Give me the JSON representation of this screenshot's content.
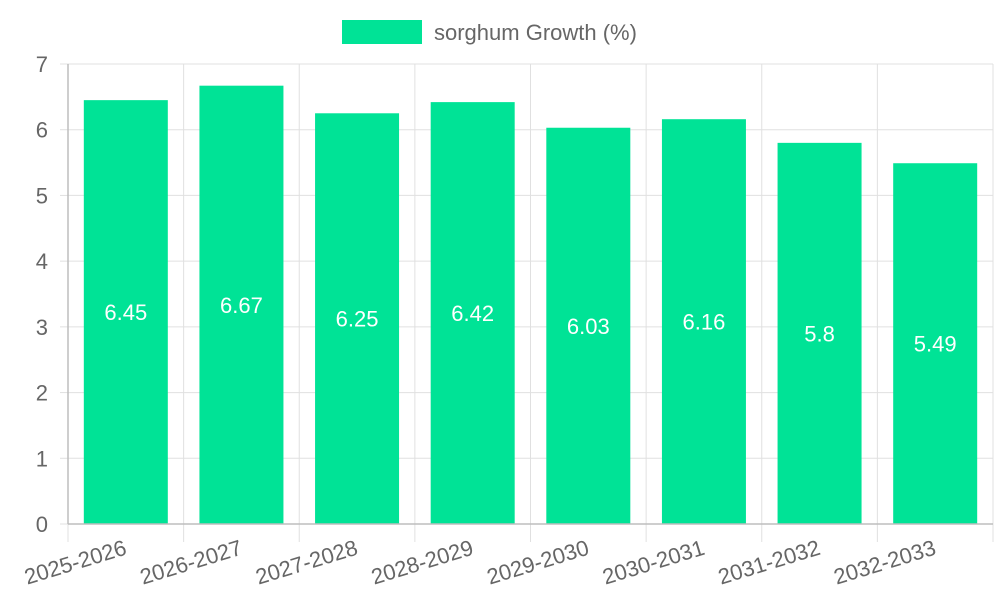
{
  "chart_data": {
    "type": "bar",
    "categories": [
      "2025-2026",
      "2026-2027",
      "2027-2028",
      "2028-2029",
      "2029-2030",
      "2030-2031",
      "2031-2032",
      "2032-2033"
    ],
    "series": [
      {
        "name": "sorghum Growth (%)",
        "values": [
          6.45,
          6.67,
          6.25,
          6.42,
          6.03,
          6.16,
          5.8,
          5.49
        ]
      }
    ],
    "ylim": [
      0,
      7
    ],
    "yticks": [
      0,
      1,
      2,
      3,
      4,
      5,
      6,
      7
    ],
    "grid": true,
    "legend": "top-center",
    "title": "",
    "xlabel": "",
    "ylabel": ""
  },
  "colors": {
    "bar": "#00e396",
    "grid": "#e0e0e0",
    "axis": "#bdbdbd",
    "tick_text": "#666666",
    "data_label": "#ffffff"
  }
}
